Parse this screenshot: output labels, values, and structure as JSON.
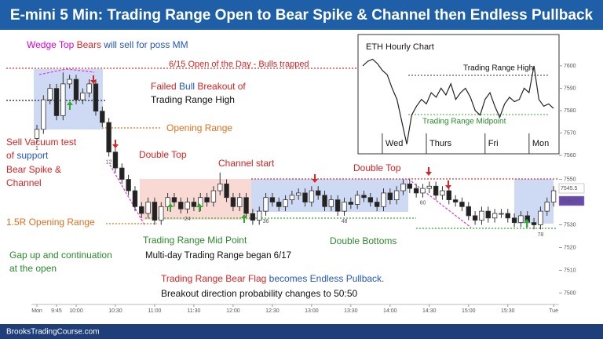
{
  "chart_data": [
    {
      "type": "candlestick",
      "title": "E-mini 5 Min: Trading Range Open to Bear Spike & Channel then Endless Pullback",
      "open": [
        7568,
        7572,
        7585,
        7590,
        7578,
        7592,
        7594,
        7585,
        7588,
        7592,
        7580,
        7575,
        7562,
        7555,
        7550,
        7545,
        7538,
        7535,
        7540,
        7532,
        7538,
        7542,
        7540,
        7537,
        7540,
        7538,
        7542,
        7540,
        7545,
        7548,
        7542,
        7538,
        7542,
        7535,
        7532,
        7536,
        7542,
        7540,
        7538,
        7541,
        7543,
        7544,
        7540,
        7545,
        7543,
        7538,
        7541,
        7536,
        7540,
        7539,
        7543,
        7542,
        7540,
        7538,
        7544,
        7541,
        7545,
        7548,
        7546,
        7544,
        7546,
        7547,
        7543,
        7545,
        7541,
        7540,
        7538,
        7534,
        7532,
        7536,
        7533,
        7535,
        7535,
        7533,
        7531,
        7534,
        7531,
        7530,
        7536,
        7540
      ],
      "high": [
        7574,
        7587,
        7592,
        7592,
        7597,
        7596,
        7596,
        7590,
        7594,
        7594,
        7582,
        7577,
        7564,
        7557,
        7552,
        7547,
        7540,
        7542,
        7542,
        7540,
        7544,
        7544,
        7542,
        7542,
        7542,
        7544,
        7544,
        7547,
        7553,
        7550,
        7544,
        7544,
        7544,
        7537,
        7538,
        7544,
        7544,
        7542,
        7543,
        7545,
        7546,
        7546,
        7547,
        7547,
        7545,
        7543,
        7543,
        7542,
        7542,
        7545,
        7545,
        7544,
        7542,
        7546,
        7546,
        7547,
        7550,
        7550,
        7548,
        7548,
        7549,
        7549,
        7547,
        7547,
        7543,
        7542,
        7540,
        7536,
        7538,
        7538,
        7537,
        7537,
        7537,
        7535,
        7536,
        7536,
        7533,
        7538,
        7542,
        7547
      ],
      "low": [
        7566,
        7570,
        7583,
        7576,
        7576,
        7590,
        7583,
        7583,
        7586,
        7578,
        7573,
        7560,
        7553,
        7548,
        7543,
        7536,
        7533,
        7533,
        7530,
        7530,
        7536,
        7538,
        7535,
        7535,
        7536,
        7536,
        7538,
        7538,
        7543,
        7540,
        7536,
        7536,
        7533,
        7530,
        7530,
        7534,
        7538,
        7536,
        7536,
        7539,
        7541,
        7538,
        7538,
        7541,
        7536,
        7536,
        7534,
        7534,
        7537,
        7537,
        7540,
        7538,
        7536,
        7536,
        7539,
        7539,
        7543,
        7544,
        7542,
        7542,
        7544,
        7541,
        7541,
        7539,
        7538,
        7536,
        7532,
        7530,
        7530,
        7531,
        7531,
        7533,
        7531,
        7529,
        7529,
        7529,
        7528,
        7528,
        7534,
        7538
      ],
      "close": [
        7572,
        7585,
        7590,
        7578,
        7592,
        7594,
        7585,
        7588,
        7592,
        7580,
        7575,
        7562,
        7555,
        7550,
        7545,
        7538,
        7535,
        7540,
        7532,
        7538,
        7542,
        7540,
        7537,
        7540,
        7538,
        7542,
        7540,
        7545,
        7548,
        7542,
        7538,
        7542,
        7535,
        7532,
        7536,
        7542,
        7540,
        7538,
        7541,
        7543,
        7544,
        7540,
        7545,
        7543,
        7538,
        7541,
        7536,
        7540,
        7539,
        7543,
        7542,
        7540,
        7538,
        7544,
        7541,
        7545,
        7548,
        7546,
        7544,
        7546,
        7547,
        7543,
        7545,
        7541,
        7540,
        7538,
        7534,
        7532,
        7536,
        7533,
        7535,
        7535,
        7533,
        7531,
        7534,
        7531,
        7530,
        7536,
        7540,
        7545
      ],
      "bar_numbers": [
        1,
        12,
        24,
        36,
        48,
        60,
        78
      ],
      "ylim": [
        7496,
        7603
      ],
      "yticks": [
        7500,
        7510,
        7520,
        7530,
        7540,
        7550
      ],
      "xticks": [
        {
          "value": 0,
          "label": "Mon"
        },
        {
          "value": 3,
          "label": "9:45"
        },
        {
          "value": 6,
          "label": "10:00"
        },
        {
          "value": 12,
          "label": "10:30"
        },
        {
          "value": 18,
          "label": "11:00"
        },
        {
          "value": 24,
          "label": "11:30"
        },
        {
          "value": 30,
          "label": "12:00"
        },
        {
          "value": 36,
          "label": "12:30"
        },
        {
          "value": 42,
          "label": "13:00"
        },
        {
          "value": 48,
          "label": "13:30"
        },
        {
          "value": 54,
          "label": "14:00"
        },
        {
          "value": 60,
          "label": "14:30"
        },
        {
          "value": 66,
          "label": "15:00"
        },
        {
          "value": 72,
          "label": "15:30"
        },
        {
          "value": 79,
          "label": "Tue"
        }
      ],
      "price_tags": [
        "7545.5",
        "7539.57"
      ]
    },
    {
      "type": "line",
      "title": "ETH Hourly Chart",
      "values": [
        7600,
        7602,
        7603,
        7601,
        7598,
        7596,
        7590,
        7585,
        7575,
        7565,
        7578,
        7582,
        7585,
        7583,
        7588,
        7586,
        7590,
        7587,
        7592,
        7585,
        7588,
        7590,
        7586,
        7580,
        7578,
        7585,
        7588,
        7582,
        7577,
        7583,
        7586,
        7584,
        7585,
        7590,
        7588,
        7600,
        7585,
        7582,
        7583,
        7581
      ],
      "ylim": [
        7560,
        7614
      ],
      "yticks": [
        7560,
        7570,
        7580,
        7590,
        7600
      ],
      "xticks": [
        {
          "value": 4,
          "label": "Wed"
        },
        {
          "value": 13,
          "label": "Thurs"
        },
        {
          "value": 25,
          "label": "Fri"
        },
        {
          "value": 34,
          "label": "Mon"
        }
      ],
      "annotations": [
        "Trading Range High",
        "Trading Range Midpoint"
      ]
    }
  ],
  "annotations": {
    "wedge": [
      "Wedge Top ",
      "Bears",
      " will sell for poss MM"
    ],
    "open_day": "6/15 Open of the Day - Bulls trapped",
    "failed": [
      "Failed ",
      "Bull",
      " Breakout of"
    ],
    "tr_high": "Trading Range High",
    "opening_range": "Opening Range",
    "double_top_1": "Double Top",
    "channel_start": "Channel start",
    "double_top_2": "Double Top",
    "sell_vacuum": [
      "Sell Vacuum test",
      "of ",
      "support",
      "Bear Spike &",
      "Channel"
    ],
    "r15": "1.5R Opening Range",
    "gap": [
      "Gap up and continuation",
      "at the open"
    ],
    "tr_mid": "Trading Range Mid Point",
    "multi_day": "Multi-day Trading Range began 6/17",
    "double_bottoms": "Double Bottoms",
    "flag": [
      "Trading Range Bear Flag ",
      "becomes Endless Pullback."
    ],
    "prob": "Breakout direction probability changes to 50:50"
  },
  "footer": "BrooksTradingCourse.com"
}
